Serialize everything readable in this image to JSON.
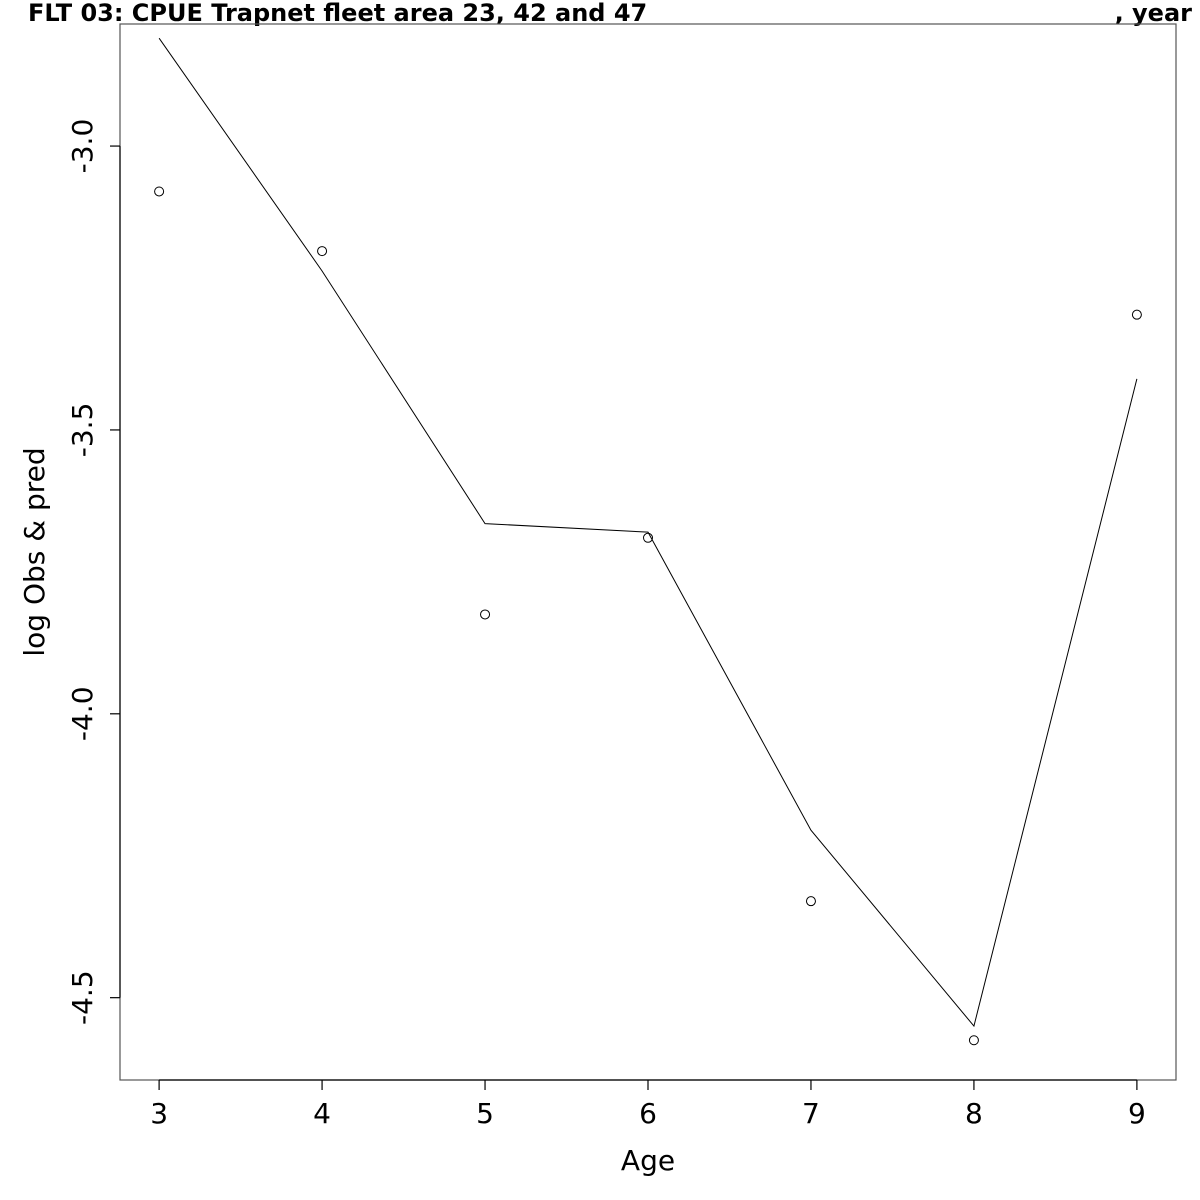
{
  "title_left": "FLT 03: CPUE Trapnet fleet area 23, 42 and 47",
  "title_right": ", year",
  "chart_data": {
    "type": "line",
    "xlabel": "Age",
    "ylabel": "log Obs & pred",
    "xlim": [
      2.76,
      9.24
    ],
    "ylim": [
      -4.645,
      -2.785
    ],
    "xticks": [
      3,
      4,
      5,
      6,
      7,
      8,
      9
    ],
    "xtick_labels": [
      "3",
      "4",
      "5",
      "6",
      "7",
      "8",
      "9"
    ],
    "yticks": [
      -3.0,
      -3.5,
      -4.0,
      -4.5
    ],
    "ytick_labels": [
      "-3.0",
      "-3.5",
      "-4.0",
      "-4.5"
    ],
    "grid": false,
    "series": [
      {
        "style": "points",
        "marker": "open-circle",
        "x": [
          3,
          4,
          5,
          6,
          7,
          8,
          9
        ],
        "y": [
          -3.08,
          -3.185,
          -3.825,
          -3.69,
          -4.33,
          -4.575,
          -3.297
        ]
      },
      {
        "style": "line",
        "x": [
          3,
          4,
          5,
          6,
          7,
          8,
          9
        ],
        "y": [
          -2.81,
          -3.22,
          -3.665,
          -3.68,
          -4.205,
          -4.55,
          -3.41
        ]
      }
    ]
  }
}
